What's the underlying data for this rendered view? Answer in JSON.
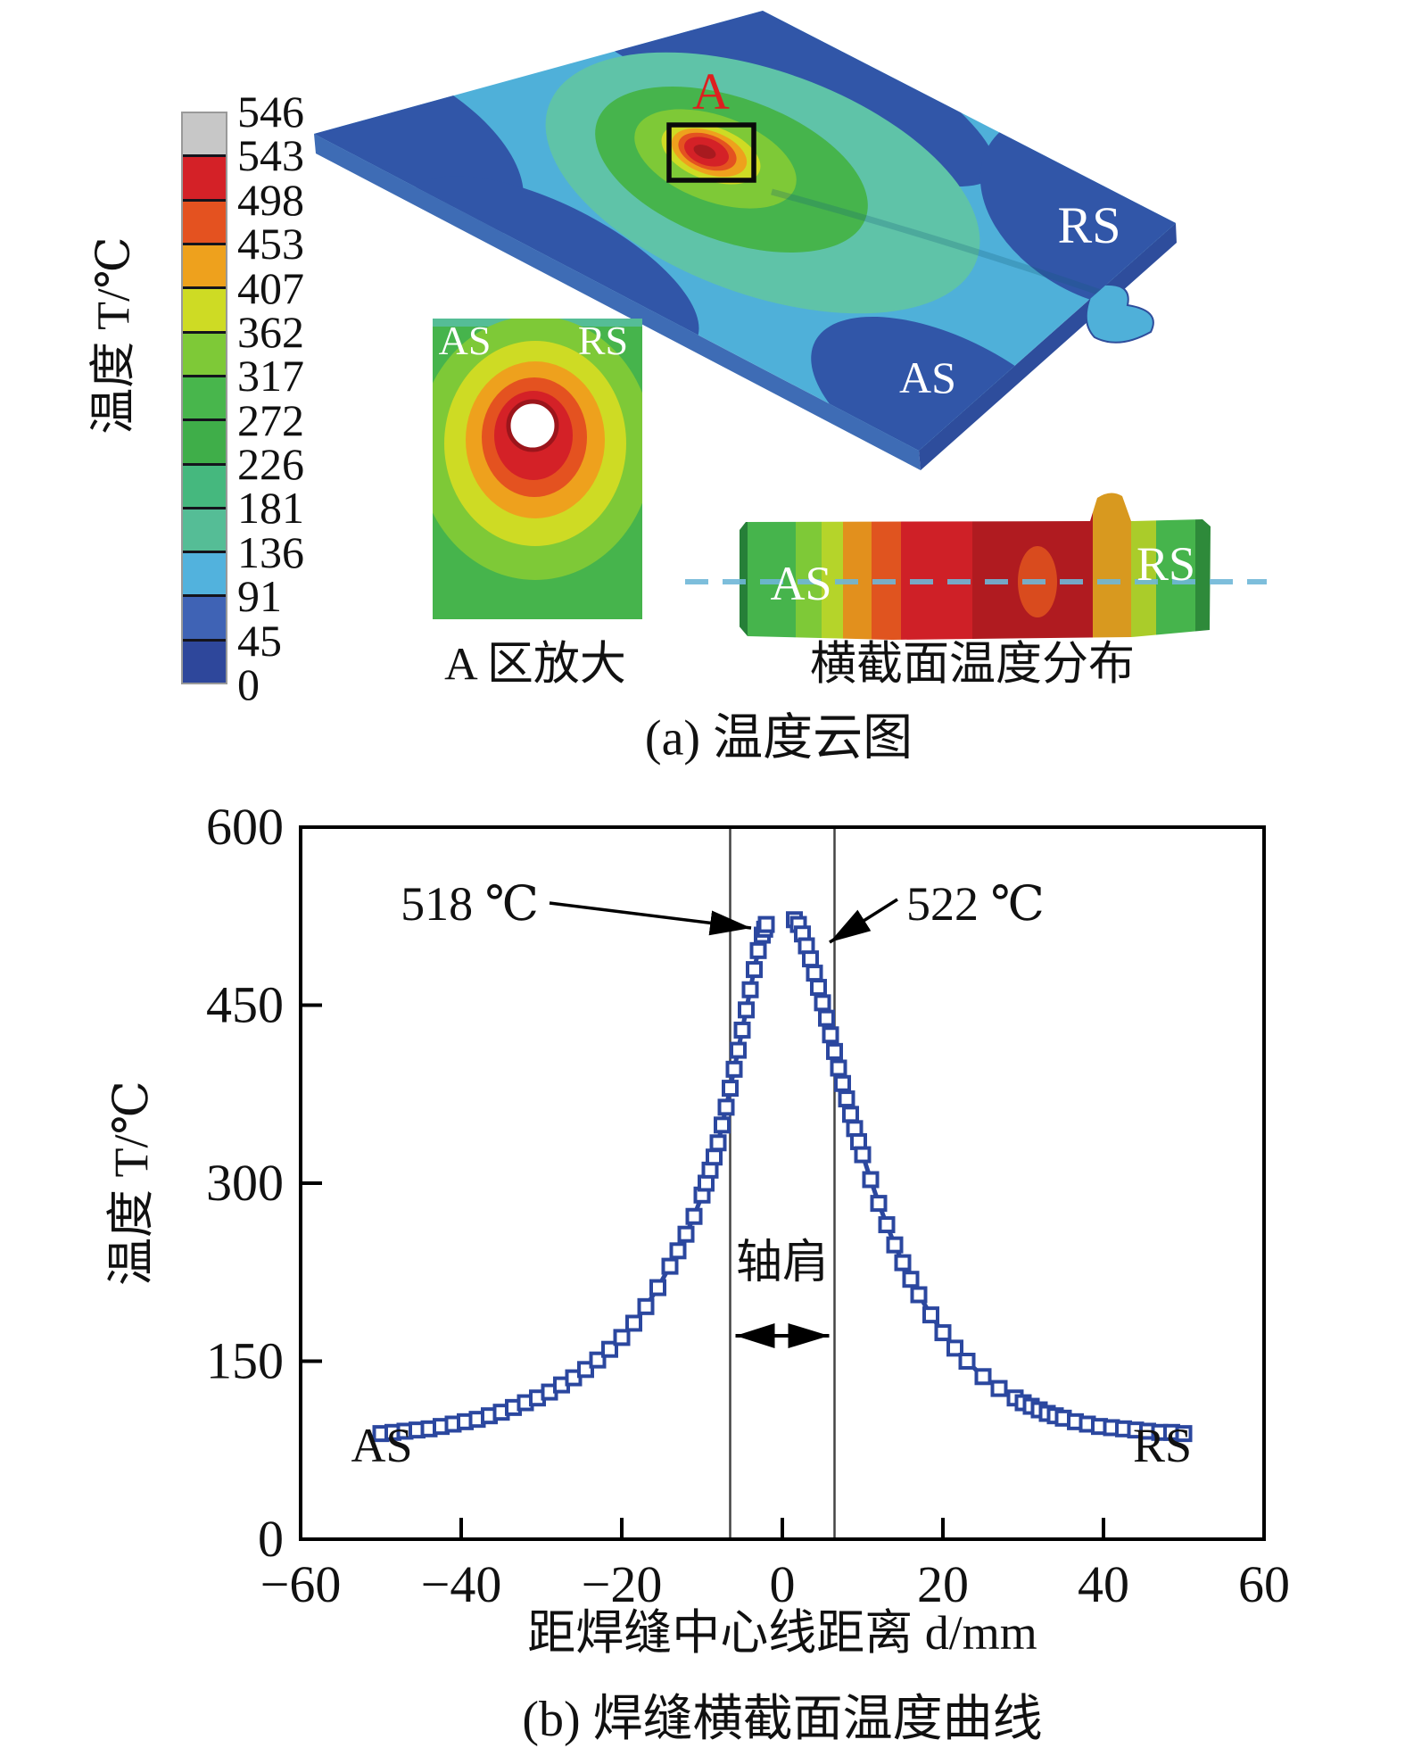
{
  "panel_a": {
    "legend": {
      "title": "温度 T/℃",
      "values": [
        "546",
        "543",
        "498",
        "453",
        "407",
        "362",
        "317",
        "272",
        "226",
        "181",
        "136",
        "91",
        "45",
        "0"
      ],
      "colors": [
        "#c7c7c7",
        "#d42127",
        "#e45220",
        "#eea11d",
        "#cedb24",
        "#7ec937",
        "#48b64c",
        "#3fae49",
        "#45b87e",
        "#55bd96",
        "#52b2dd",
        "#3f63b5",
        "#2e479b"
      ]
    },
    "plate": {
      "zone_label": "A",
      "rs_label": "RS",
      "as_label": "AS"
    },
    "inset": {
      "as_label": "AS",
      "rs_label": "RS",
      "caption": "A 区放大"
    },
    "cross_section": {
      "as_label": "AS",
      "rs_label": "RS",
      "caption": "横截面温度分布"
    },
    "caption": "(a) 温度云图"
  },
  "chart_data": {
    "type": "scatter",
    "title": "",
    "xlabel": "距焊缝中心线距离 d/mm",
    "ylabel": "温度 T/℃",
    "xlim": [
      -60,
      60
    ],
    "ylim": [
      0,
      600
    ],
    "x_ticks": [
      -60,
      -40,
      -20,
      0,
      20,
      40,
      60
    ],
    "y_ticks": [
      0,
      150,
      300,
      450,
      600
    ],
    "grid": false,
    "legend_position": "none",
    "marker_color": "#2b479f",
    "marker_shape": "open-square",
    "shoulder_lines_x": [
      -6.5,
      6.5
    ],
    "series": [
      {
        "name": "AS branch",
        "x": [
          -50,
          -48.5,
          -47,
          -45.5,
          -44,
          -42.5,
          -41,
          -39.5,
          -38,
          -36.5,
          -35,
          -33.5,
          -32,
          -30.5,
          -29,
          -27.5,
          -26,
          -24.5,
          -23,
          -21.5,
          -20,
          -18.5,
          -17,
          -15.5,
          -14,
          -13,
          -12,
          -11,
          -10,
          -9.5,
          -9,
          -8.5,
          -8,
          -7.5,
          -7,
          -6.5,
          -6,
          -5.5,
          -5,
          -4.5,
          -4,
          -3.5,
          -3,
          -2.5,
          -2.2,
          -2
        ],
        "y": [
          89,
          90,
          91,
          92,
          93,
          95,
          97,
          99,
          101,
          104,
          107,
          111,
          115,
          119,
          124,
          130,
          136,
          143,
          151,
          160,
          170,
          182,
          196,
          212,
          230,
          243,
          257,
          272,
          290,
          300,
          311,
          322,
          334,
          349,
          364,
          380,
          396,
          412,
          429,
          446,
          463,
          480,
          496,
          509,
          514,
          518
        ]
      },
      {
        "name": "RS branch",
        "x": [
          1.5,
          2,
          2.5,
          3,
          3.5,
          4,
          4.5,
          5,
          5.5,
          6,
          6.5,
          7,
          7.5,
          8,
          8.5,
          9,
          9.5,
          10,
          11,
          12,
          13,
          14,
          15,
          16,
          17,
          18.5,
          20,
          21.5,
          23,
          25,
          27,
          29,
          30,
          31,
          32,
          33,
          34,
          35,
          36.5,
          38,
          39.5,
          41,
          42.5,
          44,
          45.5,
          47,
          48.5,
          50
        ],
        "y": [
          522,
          518,
          510,
          500,
          489,
          477,
          465,
          452,
          439,
          425,
          411,
          397,
          384,
          371,
          358,
          346,
          335,
          324,
          303,
          283,
          265,
          248,
          233,
          219,
          206,
          189,
          174,
          161,
          150,
          137,
          127,
          119,
          115,
          112,
          109,
          106,
          104,
          102,
          99,
          97,
          95,
          94,
          93,
          92,
          91,
          90,
          90,
          89
        ]
      }
    ],
    "annotations": {
      "peak_left_label": "518 ℃",
      "peak_left_xy": [
        -2,
        518
      ],
      "peak_right_label": "522 ℃",
      "peak_right_xy": [
        2,
        522
      ],
      "shoulder_label": "轴肩",
      "as_label": "AS",
      "rs_label": "RS"
    },
    "caption": "(b) 焊缝横截面温度曲线"
  }
}
